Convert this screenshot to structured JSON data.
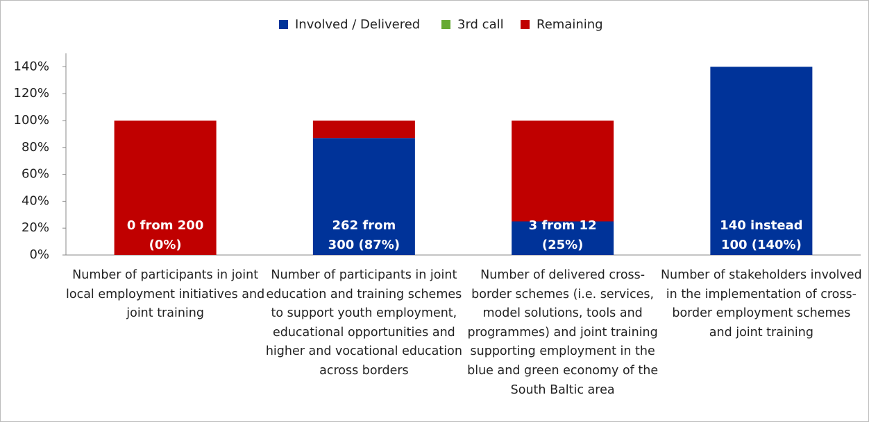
{
  "chart_data": {
    "type": "stacked_bar",
    "categories": [
      "Number of participants in joint local employment initiatives and joint training",
      "Number of participants in joint education and training schemes to support youth employment, educational opportunities and higher and vocational education across borders",
      "Number of delivered cross-border schemes (i.e. services, model solutions, tools and programmes) and joint training supporting employment in the blue and green economy of the South Baltic area",
      "Number of stakeholders involved in the implementation of cross-border employment schemes and joint training"
    ],
    "series": [
      {
        "name": "Involved / Delivered",
        "color": "#003399",
        "values": [
          0,
          87,
          25,
          140
        ]
      },
      {
        "name": "3rd call",
        "color": "#66aa33",
        "values": [
          0,
          0,
          0,
          0
        ]
      },
      {
        "name": "Remaining",
        "color": "#c00000",
        "values": [
          100,
          13,
          75,
          0
        ]
      }
    ],
    "bar_labels": [
      [
        "0 from 200",
        "(0%)"
      ],
      [
        "262 from",
        "300 (87%)"
      ],
      [
        "3 from 12",
        "(25%)"
      ],
      [
        "140 instead",
        "100 (140%)"
      ]
    ],
    "ylim": [
      0,
      150
    ],
    "yticks": [
      {
        "value": 0,
        "label": "0%"
      },
      {
        "value": 20,
        "label": "20%"
      },
      {
        "value": 40,
        "label": "40%"
      },
      {
        "value": 60,
        "label": "60%"
      },
      {
        "value": 80,
        "label": "80%"
      },
      {
        "value": 100,
        "label": "100%"
      },
      {
        "value": 120,
        "label": "120%"
      },
      {
        "value": 140,
        "label": "140%"
      }
    ],
    "legend": "top"
  }
}
